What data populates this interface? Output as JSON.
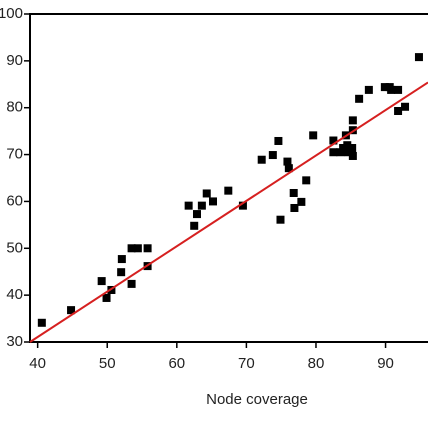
{
  "chart_data": {
    "type": "scatter",
    "xlabel": "Node coverage",
    "color": "#000000",
    "x": [
      40.6,
      44.8,
      49.2,
      49.9,
      50.6,
      52.0,
      52.1,
      53.5,
      53.5,
      54.4,
      55.8,
      55.8,
      61.7,
      62.5,
      62.9,
      63.6,
      64.3,
      65.2,
      67.4,
      69.5,
      72.2,
      73.8,
      74.6,
      74.9,
      75.9,
      76.1,
      76.8,
      76.9,
      77.9,
      78.6,
      79.6,
      82.5,
      82.5,
      83.5,
      83.9,
      84.3,
      84.5,
      84.6,
      85.2,
      85.3,
      85.3,
      85.3,
      86.2,
      87.6,
      89.9,
      90.6,
      90.8,
      91.8,
      91.8,
      92.8,
      94.8
    ],
    "y": [
      34.1,
      36.8,
      43.0,
      39.4,
      41.1,
      44.9,
      47.7,
      42.4,
      50.0,
      50.0,
      50.0,
      46.2,
      59.1,
      54.8,
      57.3,
      59.1,
      61.7,
      60.0,
      62.3,
      59.1,
      68.9,
      69.9,
      72.9,
      56.1,
      68.5,
      67.1,
      61.8,
      58.6,
      59.9,
      64.5,
      74.1,
      73.0,
      70.5,
      70.5,
      71.4,
      74.1,
      72.0,
      70.5,
      71.4,
      75.2,
      77.3,
      69.7,
      81.9,
      83.8,
      84.4,
      84.4,
      83.8,
      83.8,
      79.3,
      80.2,
      90.8
    ],
    "fit_line": {
      "x": [
        38.9,
        96.1
      ],
      "y": [
        30,
        85.4
      ],
      "color": "#d62020"
    },
    "xlim": [
      38.9,
      96.1
    ],
    "ylim": [
      30,
      100
    ],
    "xticks": [
      40,
      50,
      60,
      70,
      80,
      90
    ],
    "yticks": [
      30,
      40,
      50,
      60,
      70,
      80,
      90,
      100
    ]
  }
}
